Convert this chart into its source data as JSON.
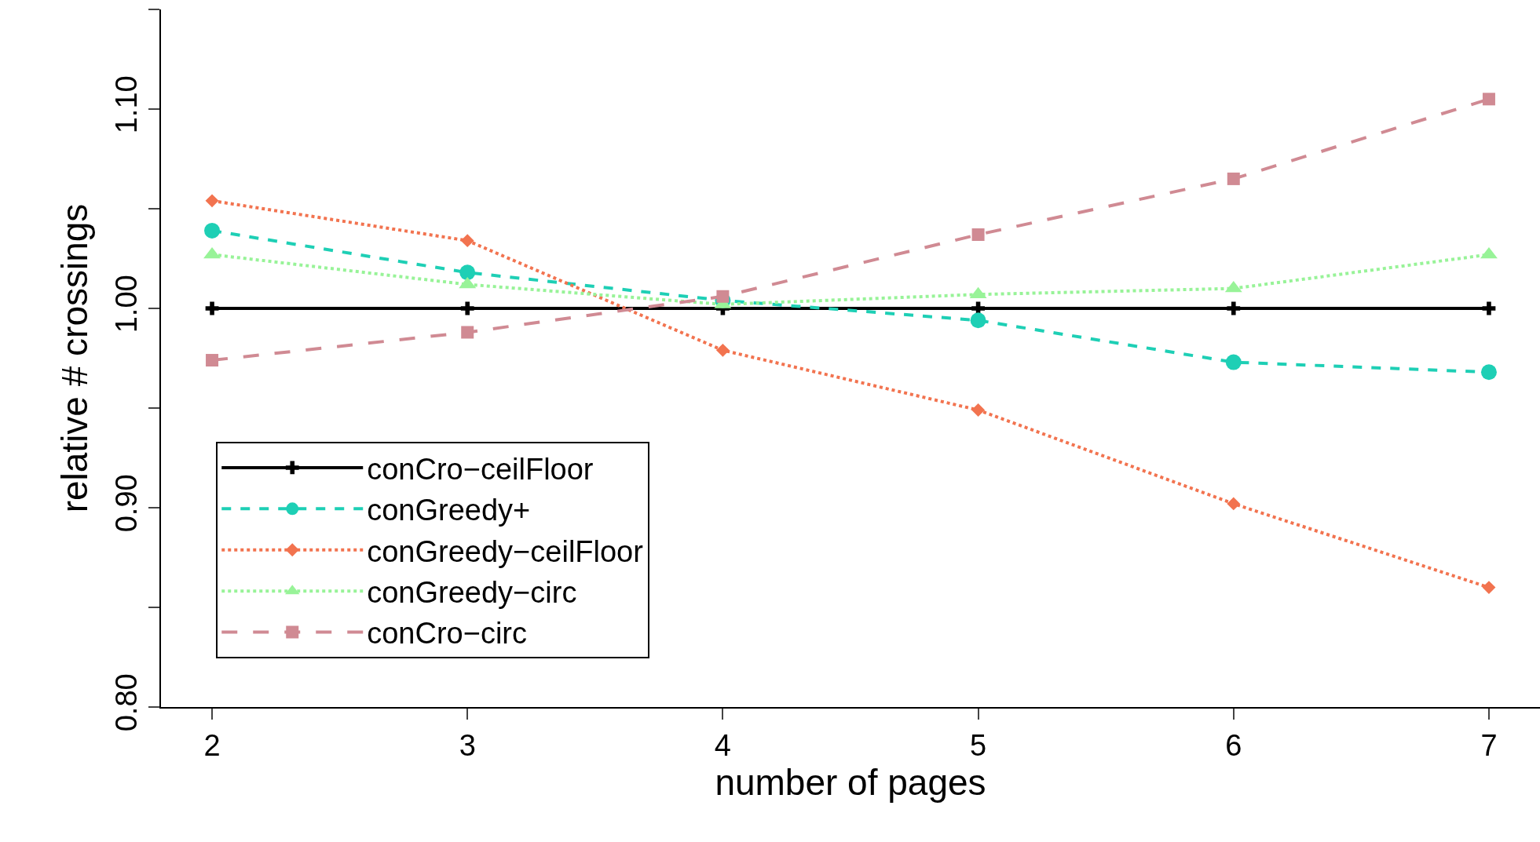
{
  "chart_data": {
    "type": "line",
    "xlabel": "number of pages",
    "ylabel": "relative # crossings",
    "x": [
      2,
      3,
      4,
      5,
      6,
      7
    ],
    "series": [
      {
        "name": "conCro−ceilFloor",
        "color": "#000000",
        "line_style": "solid",
        "marker": "cross",
        "values": [
          1.0,
          1.0,
          1.0,
          1.0,
          1.0,
          1.0
        ]
      },
      {
        "name": "conGreedy+",
        "color": "#1ecfb5",
        "line_style": "dashed",
        "marker": "circle",
        "values": [
          1.039,
          1.018,
          1.004,
          0.994,
          0.973,
          0.968
        ]
      },
      {
        "name": "conGreedy−ceilFloor",
        "color": "#f2734f",
        "line_style": "dotted",
        "marker": "diamond",
        "values": [
          1.054,
          1.034,
          0.979,
          0.949,
          0.902,
          0.86
        ]
      },
      {
        "name": "conGreedy−circ",
        "color": "#98f398",
        "line_style": "dotted",
        "marker": "triangle",
        "values": [
          1.027,
          1.012,
          1.002,
          1.007,
          1.01,
          1.027
        ]
      },
      {
        "name": "conCro−circ",
        "color": "#d08a93",
        "line_style": "longdash",
        "marker": "square",
        "values": [
          0.974,
          0.988,
          1.006,
          1.037,
          1.065,
          1.105
        ]
      }
    ],
    "xlim": [
      1.8,
      7.2
    ],
    "ylim": [
      0.8,
      1.15
    ],
    "xticks": [
      2,
      3,
      4,
      5,
      6,
      7
    ],
    "yticks": [
      {
        "value": 0.8,
        "label": "0.80"
      },
      {
        "value": 0.85,
        "label": null
      },
      {
        "value": 0.9,
        "label": "0.90"
      },
      {
        "value": 0.95,
        "label": null
      },
      {
        "value": 1.0,
        "label": "1.00"
      },
      {
        "value": 1.05,
        "label": null
      },
      {
        "value": 1.1,
        "label": "1.10"
      },
      {
        "value": 1.15,
        "label": null
      }
    ],
    "grid": false,
    "legend": "bottom left"
  }
}
